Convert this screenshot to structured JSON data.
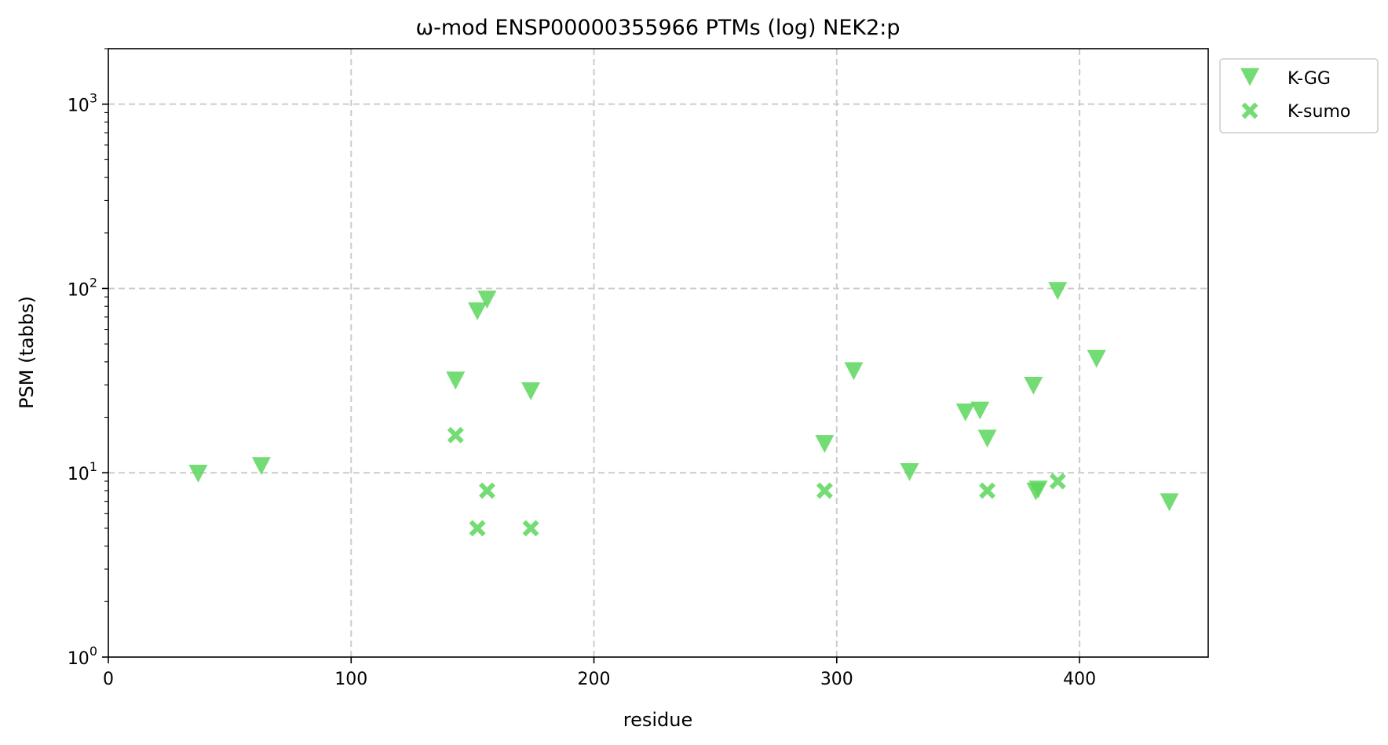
{
  "chart_data": {
    "type": "scatter",
    "title": "ω-mod ENSP00000355966 PTMs (log) NEK2:p",
    "xlabel": "residue",
    "ylabel": "PSM (tabbs)",
    "xlim": [
      0,
      453
    ],
    "ylim": [
      1,
      2000
    ],
    "yscale": "log",
    "xticks": [
      0,
      100,
      200,
      300,
      400
    ],
    "yticks": [
      {
        "value": 1,
        "base": "10",
        "exp": "0"
      },
      {
        "value": 10,
        "base": "10",
        "exp": "1"
      },
      {
        "value": 100,
        "base": "10",
        "exp": "2"
      },
      {
        "value": 1000,
        "base": "10",
        "exp": "3"
      }
    ],
    "grid": true,
    "legend_position": "outside top-right",
    "series": [
      {
        "name": "K-GG",
        "marker": "triangle-down-icon",
        "color": "#5cd65c",
        "points": [
          {
            "x": 37,
            "y": 10
          },
          {
            "x": 63,
            "y": 11
          },
          {
            "x": 143,
            "y": 32
          },
          {
            "x": 152,
            "y": 76
          },
          {
            "x": 156,
            "y": 88
          },
          {
            "x": 174,
            "y": 28
          },
          {
            "x": 295,
            "y": 14.5
          },
          {
            "x": 307,
            "y": 36
          },
          {
            "x": 330,
            "y": 10.2
          },
          {
            "x": 353,
            "y": 21.5
          },
          {
            "x": 359,
            "y": 22
          },
          {
            "x": 362,
            "y": 15.5
          },
          {
            "x": 381,
            "y": 30
          },
          {
            "x": 382,
            "y": 8
          },
          {
            "x": 383,
            "y": 8.2
          },
          {
            "x": 391,
            "y": 98
          },
          {
            "x": 407,
            "y": 42
          },
          {
            "x": 437,
            "y": 7
          }
        ]
      },
      {
        "name": "K-sumo",
        "marker": "x-filled-icon",
        "color": "#5cd65c",
        "points": [
          {
            "x": 143,
            "y": 16
          },
          {
            "x": 152,
            "y": 5
          },
          {
            "x": 156,
            "y": 8
          },
          {
            "x": 174,
            "y": 5
          },
          {
            "x": 295,
            "y": 8
          },
          {
            "x": 362,
            "y": 8
          },
          {
            "x": 391,
            "y": 9
          }
        ]
      }
    ]
  }
}
